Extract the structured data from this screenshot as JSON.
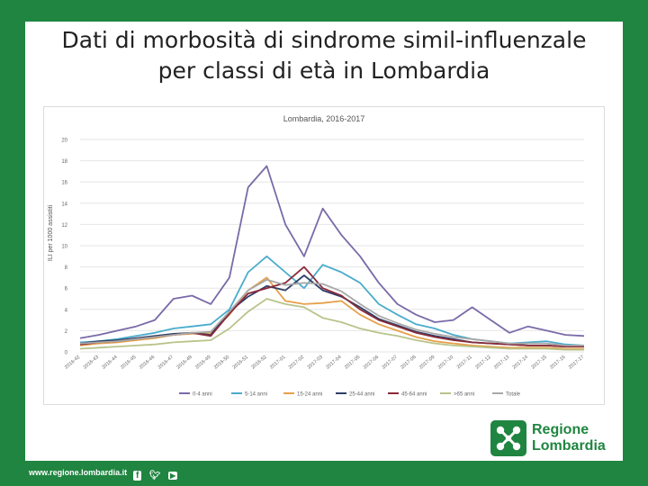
{
  "slide": {
    "title_line1": "Dati di morbosità di sindrome simil-influenzale",
    "title_line2": "per classi di età in Lombardia"
  },
  "footer": {
    "url": "www.regione.lombardia.it",
    "icons": [
      "facebook-icon",
      "twitter-icon",
      "youtube-icon"
    ]
  },
  "logo": {
    "line1": "Regione",
    "line2": "Lombardia",
    "color": "#1f8540"
  },
  "chart_data": {
    "type": "line",
    "title": "Lombardia, 2016-2017",
    "ylabel": "ILI per 1000 assistiti",
    "xlabel": "",
    "ylim": [
      0,
      20
    ],
    "yticks": [
      0,
      2,
      4,
      6,
      8,
      10,
      12,
      14,
      16,
      18,
      20
    ],
    "grid": true,
    "legend": "bottom",
    "categories": [
      "2016-42",
      "2016-43",
      "2016-44",
      "2016-45",
      "2016-46",
      "2016-47",
      "2016-48",
      "2016-49",
      "2016-50",
      "2016-51",
      "2016-52",
      "2017-01",
      "2017-02",
      "2017-03",
      "2017-04",
      "2017-05",
      "2017-06",
      "2017-07",
      "2017-08",
      "2017-09",
      "2017-10",
      "2017-11",
      "2017-12",
      "2017-13",
      "2017-14",
      "2017-15",
      "2017-16",
      "2017-17"
    ],
    "series": [
      {
        "name": "0-4 anni",
        "color": "#7a6aa8",
        "values": [
          1.3,
          1.6,
          2.0,
          2.4,
          3.0,
          5.0,
          5.3,
          4.5,
          7.0,
          15.5,
          17.5,
          12.0,
          9.0,
          13.5,
          11.0,
          9.0,
          6.5,
          4.5,
          3.5,
          2.8,
          3.0,
          4.2,
          3.0,
          1.8,
          2.4,
          2.0,
          1.6,
          1.5
        ]
      },
      {
        "name": "5-14 anni",
        "color": "#4aaccc",
        "values": [
          0.9,
          1.0,
          1.2,
          1.5,
          1.8,
          2.2,
          2.4,
          2.6,
          4.0,
          7.5,
          9.0,
          7.5,
          6.0,
          8.2,
          7.5,
          6.5,
          4.5,
          3.5,
          2.6,
          2.2,
          1.6,
          1.2,
          1.0,
          0.8,
          0.9,
          1.0,
          0.7,
          0.6
        ]
      },
      {
        "name": "15-24 anni",
        "color": "#e6a04a",
        "values": [
          0.6,
          0.8,
          0.9,
          1.1,
          1.3,
          1.6,
          1.7,
          1.8,
          3.5,
          5.8,
          7.0,
          4.8,
          4.5,
          4.6,
          4.8,
          3.5,
          2.6,
          2.0,
          1.4,
          1.0,
          0.8,
          0.6,
          0.5,
          0.4,
          0.4,
          0.4,
          0.3,
          0.3
        ]
      },
      {
        "name": "25-44 anni",
        "color": "#2e3f66",
        "values": [
          0.8,
          1.0,
          1.1,
          1.3,
          1.5,
          1.7,
          1.8,
          1.6,
          3.8,
          5.2,
          6.2,
          5.8,
          7.2,
          5.8,
          5.2,
          4.2,
          3.1,
          2.5,
          1.9,
          1.5,
          1.2,
          0.9,
          0.8,
          0.7,
          0.6,
          0.6,
          0.5,
          0.5
        ]
      },
      {
        "name": "45-64 anni",
        "color": "#8a2a3a",
        "values": [
          0.7,
          0.9,
          1.0,
          1.2,
          1.4,
          1.6,
          1.8,
          1.5,
          3.6,
          5.5,
          6.0,
          6.5,
          8.0,
          6.0,
          5.3,
          4.0,
          3.0,
          2.4,
          1.8,
          1.4,
          1.1,
          0.9,
          0.8,
          0.7,
          0.6,
          0.6,
          0.5,
          0.5
        ]
      },
      {
        "name": ">65 anni",
        "color": "#b8c48a",
        "values": [
          0.3,
          0.4,
          0.5,
          0.6,
          0.7,
          0.9,
          1.0,
          1.1,
          2.2,
          3.8,
          5.0,
          4.5,
          4.2,
          3.2,
          2.8,
          2.2,
          1.8,
          1.5,
          1.1,
          0.8,
          0.6,
          0.5,
          0.4,
          0.3,
          0.3,
          0.3,
          0.2,
          0.2
        ]
      },
      {
        "name": "Totale",
        "color": "#a8a8a8",
        "values": [
          0.8,
          0.9,
          1.0,
          1.2,
          1.4,
          1.6,
          1.8,
          1.9,
          3.8,
          5.8,
          6.8,
          6.3,
          6.5,
          6.4,
          5.7,
          4.5,
          3.4,
          2.7,
          2.1,
          1.7,
          1.4,
          1.2,
          1.0,
          0.8,
          0.8,
          0.8,
          0.6,
          0.6
        ]
      }
    ]
  }
}
